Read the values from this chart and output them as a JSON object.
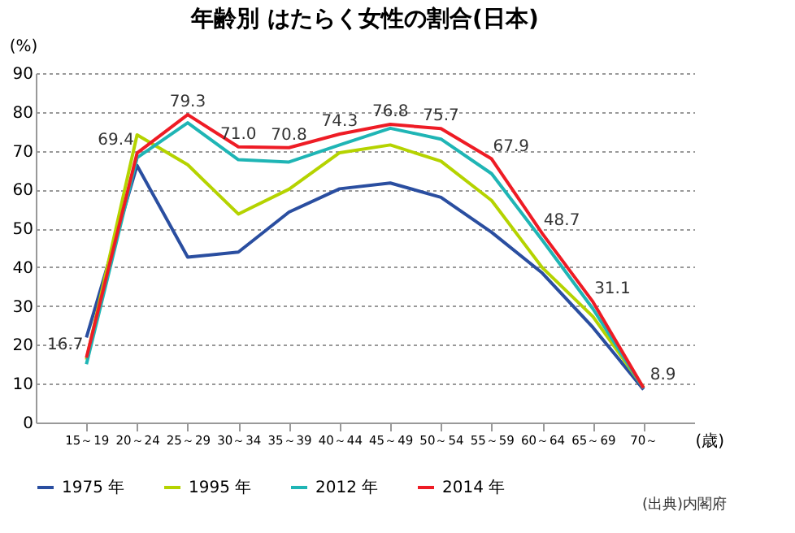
{
  "chart_data": {
    "type": "line",
    "title": "年齢別 はたらく女性の割合(日本)",
    "xlabel": "(歳)",
    "ylabel": "(%)",
    "categories": [
      "15～19",
      "20～24",
      "25～29",
      "30～34",
      "35～39",
      "40～44",
      "45～49",
      "50～54",
      "55～59",
      "60～64",
      "65～69",
      "70～"
    ],
    "series": [
      {
        "name": "1975 年",
        "color": "#2a4ea0",
        "values": [
          21.9,
          66.2,
          42.6,
          43.9,
          54.2,
          60.2,
          61.7,
          58.0,
          49.0,
          38.5,
          24.5,
          8.5
        ]
      },
      {
        "name": "1995 年",
        "color": "#b5d300",
        "values": [
          16.2,
          74.1,
          66.4,
          53.7,
          60.1,
          69.5,
          71.5,
          67.3,
          57.2,
          39.9,
          27.3,
          9.0
        ]
      },
      {
        "name": "2012 年",
        "color": "#1fb5b5",
        "values": [
          15.0,
          68.2,
          77.2,
          67.7,
          67.1,
          71.5,
          75.8,
          73.0,
          64.1,
          47.0,
          29.3,
          8.8
        ]
      },
      {
        "name": "2014 年",
        "color": "#ee1c25",
        "values": [
          16.7,
          69.4,
          79.3,
          71.0,
          70.8,
          74.3,
          76.8,
          75.7,
          67.9,
          48.7,
          31.1,
          8.9
        ],
        "value_labels": [
          "16.7",
          "69.4",
          "79.3",
          "71.0",
          "70.8",
          "74.3",
          "76.8",
          "75.7",
          "67.9",
          "48.7",
          "31.1",
          "8.9"
        ]
      }
    ],
    "ylim": [
      0,
      90
    ],
    "yticks": [
      0,
      10,
      20,
      30,
      40,
      50,
      60,
      70,
      80,
      90
    ],
    "grid": "y",
    "legend": "bottom",
    "marker": "none",
    "line_style": "solid",
    "annotations": [
      "(出典)内閣府"
    ]
  }
}
